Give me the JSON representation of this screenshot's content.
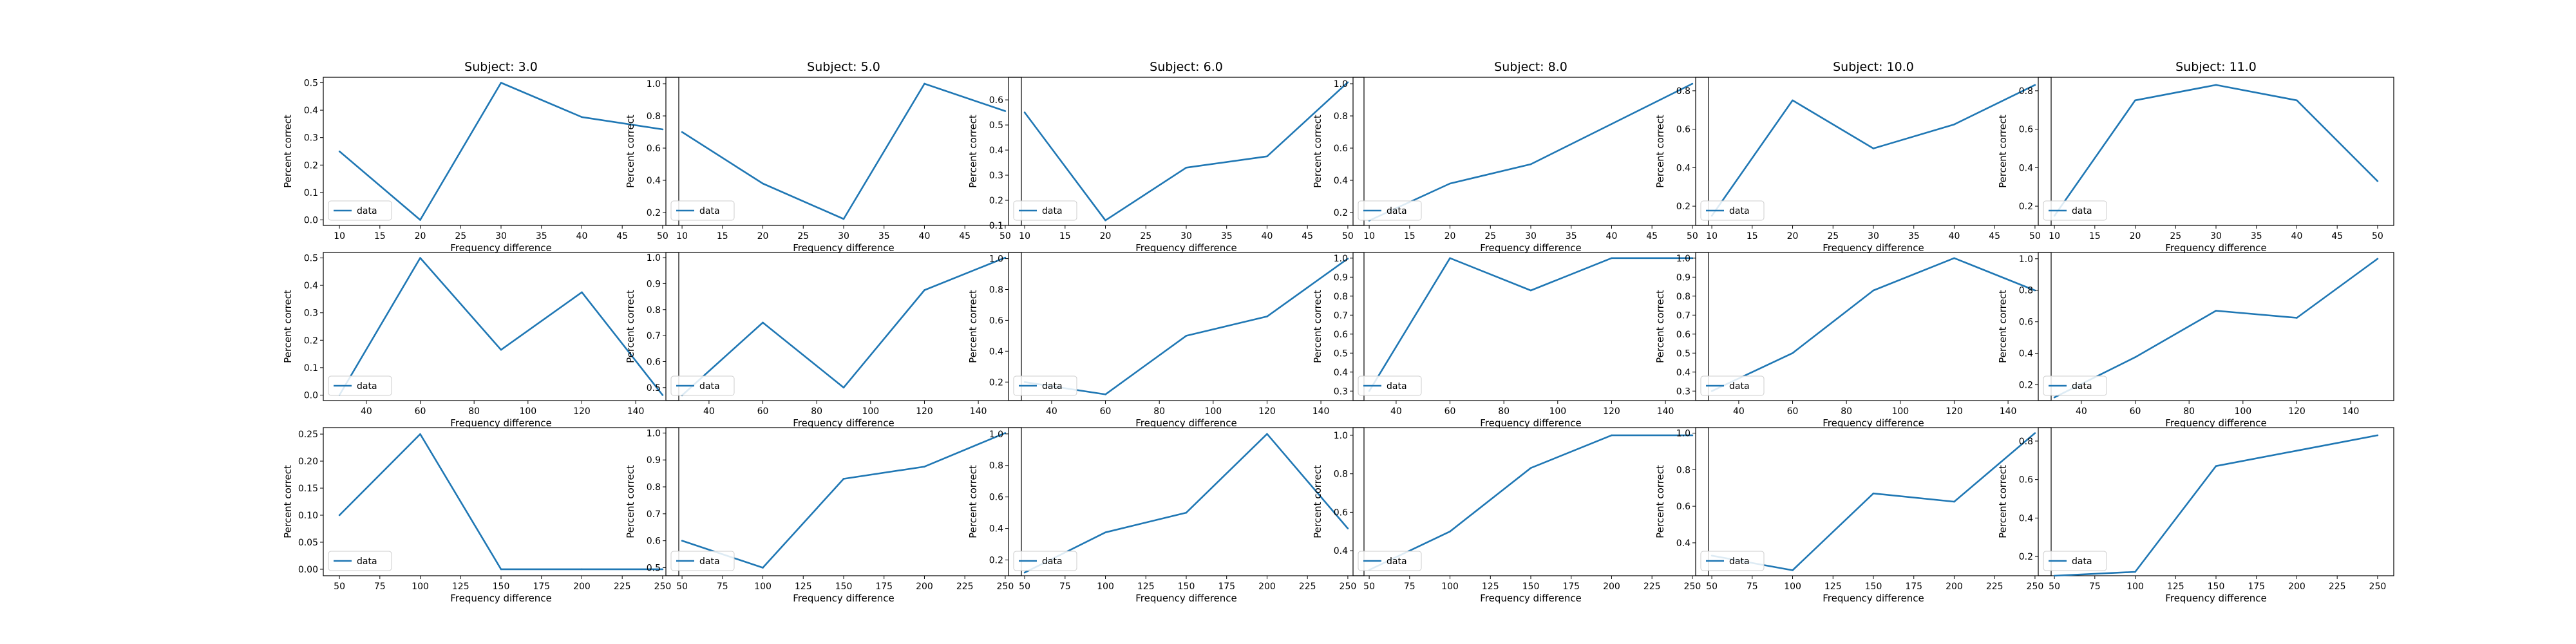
{
  "chart_data": [
    {
      "type": "line",
      "title": "Subject: 3.0",
      "xlabel": "Frequency difference",
      "ylabel": "Percent correct",
      "x": [
        10,
        20,
        30,
        40,
        50
      ],
      "xlim": [
        8,
        52
      ],
      "xticks": [
        10,
        15,
        20,
        25,
        30,
        35,
        40,
        45,
        50
      ],
      "ylim": [
        -0.02,
        0.52
      ],
      "yticks": [
        0.0,
        0.1,
        0.2,
        0.3,
        0.4,
        0.5
      ],
      "series": [
        {
          "name": "data",
          "values": [
            0.25,
            0.0,
            0.5,
            0.375,
            0.33
          ]
        }
      ],
      "legend": "lower left",
      "color": "#1f77b4"
    },
    {
      "type": "line",
      "title": "Subject: 5.0",
      "xlabel": "Frequency difference",
      "ylabel": "Percent correct",
      "x": [
        10,
        20,
        30,
        40,
        50
      ],
      "xlim": [
        8,
        52
      ],
      "xticks": [
        10,
        15,
        20,
        25,
        30,
        35,
        40,
        45,
        50
      ],
      "ylim": [
        0.12,
        1.04
      ],
      "yticks": [
        0.2,
        0.4,
        0.6,
        0.8,
        1.0
      ],
      "series": [
        {
          "name": "data",
          "values": [
            0.7,
            0.38,
            0.16,
            1.0,
            0.83
          ]
        }
      ],
      "legend": "lower left",
      "color": "#1f77b4"
    },
    {
      "type": "line",
      "title": "Subject: 6.0",
      "xlabel": "Frequency difference",
      "ylabel": "Percent correct",
      "x": [
        10,
        20,
        30,
        40,
        50
      ],
      "xlim": [
        8,
        52
      ],
      "xticks": [
        10,
        15,
        20,
        25,
        30,
        35,
        40,
        45,
        50
      ],
      "ylim": [
        0.1,
        0.69
      ],
      "yticks": [
        0.1,
        0.2,
        0.3,
        0.4,
        0.5,
        0.6
      ],
      "series": [
        {
          "name": "data",
          "values": [
            0.55,
            0.12,
            0.33,
            0.375,
            0.67
          ]
        }
      ],
      "legend": "lower left",
      "color": "#1f77b4"
    },
    {
      "type": "line",
      "title": "Subject: 8.0",
      "xlabel": "Frequency difference",
      "ylabel": "Percent correct",
      "x": [
        10,
        20,
        30,
        40,
        50
      ],
      "xlim": [
        8,
        52
      ],
      "xticks": [
        10,
        15,
        20,
        25,
        30,
        35,
        40,
        45,
        50
      ],
      "ylim": [
        0.12,
        1.04
      ],
      "yticks": [
        0.2,
        0.4,
        0.6,
        0.8,
        1.0
      ],
      "series": [
        {
          "name": "data",
          "values": [
            0.15,
            0.38,
            0.5,
            0.75,
            1.0
          ]
        }
      ],
      "legend": "lower left",
      "color": "#1f77b4"
    },
    {
      "type": "line",
      "title": "Subject: 10.0",
      "xlabel": "Frequency difference",
      "ylabel": "Percent correct",
      "x": [
        10,
        20,
        30,
        40,
        50
      ],
      "xlim": [
        8,
        52
      ],
      "xticks": [
        10,
        15,
        20,
        25,
        30,
        35,
        40,
        45,
        50
      ],
      "ylim": [
        0.1,
        0.87
      ],
      "yticks": [
        0.2,
        0.4,
        0.6,
        0.8
      ],
      "series": [
        {
          "name": "data",
          "values": [
            0.15,
            0.75,
            0.5,
            0.625,
            0.83
          ]
        }
      ],
      "legend": "lower left",
      "color": "#1f77b4"
    },
    {
      "type": "line",
      "title": "Subject: 11.0",
      "xlabel": "Frequency difference",
      "ylabel": "Percent correct",
      "x": [
        10,
        20,
        30,
        40,
        50
      ],
      "xlim": [
        8,
        52
      ],
      "xticks": [
        10,
        15,
        20,
        25,
        30,
        35,
        40,
        45,
        50
      ],
      "ylim": [
        0.1,
        0.87
      ],
      "yticks": [
        0.2,
        0.4,
        0.6,
        0.8
      ],
      "series": [
        {
          "name": "data",
          "values": [
            0.15,
            0.75,
            0.83,
            0.75,
            0.33
          ]
        }
      ],
      "legend": "lower left",
      "color": "#1f77b4"
    },
    {
      "type": "line",
      "title": "",
      "xlabel": "Frequency difference",
      "ylabel": "Percent correct",
      "x": [
        30,
        60,
        90,
        120,
        150
      ],
      "xlim": [
        24,
        156
      ],
      "xticks": [
        40,
        60,
        80,
        100,
        120,
        140
      ],
      "ylim": [
        -0.02,
        0.52
      ],
      "yticks": [
        0.0,
        0.1,
        0.2,
        0.3,
        0.4,
        0.5
      ],
      "series": [
        {
          "name": "data",
          "values": [
            0.0,
            0.5,
            0.165,
            0.375,
            0.0
          ]
        }
      ],
      "legend": "lower left",
      "color": "#1f77b4"
    },
    {
      "type": "line",
      "title": "",
      "xlabel": "Frequency difference",
      "ylabel": "Percent correct",
      "x": [
        30,
        60,
        90,
        120,
        150
      ],
      "xlim": [
        24,
        156
      ],
      "xticks": [
        40,
        60,
        80,
        100,
        120,
        140
      ],
      "ylim": [
        0.45,
        1.02
      ],
      "yticks": [
        0.5,
        0.6,
        0.7,
        0.8,
        0.9,
        1.0
      ],
      "series": [
        {
          "name": "data",
          "values": [
            0.47,
            0.75,
            0.5,
            0.875,
            1.0
          ]
        }
      ],
      "legend": "lower left",
      "color": "#1f77b4"
    },
    {
      "type": "line",
      "title": "",
      "xlabel": "Frequency difference",
      "ylabel": "Percent correct",
      "x": [
        30,
        60,
        90,
        120,
        150
      ],
      "xlim": [
        24,
        156
      ],
      "xticks": [
        40,
        60,
        80,
        100,
        120,
        140
      ],
      "ylim": [
        0.08,
        1.04
      ],
      "yticks": [
        0.2,
        0.4,
        0.6,
        0.8,
        1.0
      ],
      "series": [
        {
          "name": "data",
          "values": [
            0.2,
            0.12,
            0.5,
            0.625,
            1.0
          ]
        }
      ],
      "legend": "lower left",
      "color": "#1f77b4"
    },
    {
      "type": "line",
      "title": "",
      "xlabel": "Frequency difference",
      "ylabel": "Percent correct",
      "x": [
        30,
        60,
        90,
        120,
        150
      ],
      "xlim": [
        24,
        156
      ],
      "xticks": [
        40,
        60,
        80,
        100,
        120,
        140
      ],
      "ylim": [
        0.25,
        1.03
      ],
      "yticks": [
        0.3,
        0.4,
        0.5,
        0.6,
        0.7,
        0.8,
        0.9,
        1.0
      ],
      "series": [
        {
          "name": "data",
          "values": [
            0.3,
            1.0,
            0.83,
            1.0,
            1.0
          ]
        }
      ],
      "legend": "lower left",
      "color": "#1f77b4"
    },
    {
      "type": "line",
      "title": "",
      "xlabel": "Frequency difference",
      "ylabel": "Percent correct",
      "x": [
        30,
        60,
        90,
        120,
        150
      ],
      "xlim": [
        24,
        156
      ],
      "xticks": [
        40,
        60,
        80,
        100,
        120,
        140
      ],
      "ylim": [
        0.25,
        1.03
      ],
      "yticks": [
        0.3,
        0.4,
        0.5,
        0.6,
        0.7,
        0.8,
        0.9,
        1.0
      ],
      "series": [
        {
          "name": "data",
          "values": [
            0.3,
            0.5,
            0.83,
            1.0,
            0.83
          ]
        }
      ],
      "legend": "lower left",
      "color": "#1f77b4"
    },
    {
      "type": "line",
      "title": "",
      "xlabel": "Frequency difference",
      "ylabel": "Percent correct",
      "x": [
        30,
        60,
        90,
        120,
        150
      ],
      "xlim": [
        24,
        156
      ],
      "xticks": [
        40,
        60,
        80,
        100,
        120,
        140
      ],
      "ylim": [
        0.1,
        1.04
      ],
      "yticks": [
        0.2,
        0.4,
        0.6,
        0.8,
        1.0
      ],
      "series": [
        {
          "name": "data",
          "values": [
            0.12,
            0.375,
            0.67,
            0.625,
            1.0
          ]
        }
      ],
      "legend": "lower left",
      "color": "#1f77b4"
    },
    {
      "type": "line",
      "title": "",
      "xlabel": "Frequency difference",
      "ylabel": "Percent correct",
      "x": [
        50,
        100,
        150,
        200,
        250
      ],
      "xlim": [
        40,
        260
      ],
      "xticks": [
        50,
        75,
        100,
        125,
        150,
        175,
        200,
        225,
        250
      ],
      "ylim": [
        -0.012,
        0.262
      ],
      "yticks": [
        0.0,
        0.05,
        0.1,
        0.15,
        0.2,
        0.25
      ],
      "series": [
        {
          "name": "data",
          "values": [
            0.1,
            0.25,
            0.0,
            0.0,
            0.0
          ]
        }
      ],
      "legend": "lower left",
      "color": "#1f77b4"
    },
    {
      "type": "line",
      "title": "",
      "xlabel": "Frequency difference",
      "ylabel": "Percent correct",
      "x": [
        50,
        100,
        150,
        200,
        250
      ],
      "xlim": [
        40,
        260
      ],
      "xticks": [
        50,
        75,
        100,
        125,
        150,
        175,
        200,
        225,
        250
      ],
      "ylim": [
        0.47,
        1.02
      ],
      "yticks": [
        0.5,
        0.6,
        0.7,
        0.8,
        0.9,
        1.0
      ],
      "series": [
        {
          "name": "data",
          "values": [
            0.6,
            0.5,
            0.83,
            0.875,
            1.0
          ]
        }
      ],
      "legend": "lower left",
      "color": "#1f77b4"
    },
    {
      "type": "line",
      "title": "",
      "xlabel": "Frequency difference",
      "ylabel": "Percent correct",
      "x": [
        50,
        100,
        150,
        200,
        250
      ],
      "xlim": [
        40,
        260
      ],
      "xticks": [
        50,
        75,
        100,
        125,
        150,
        175,
        200,
        225,
        250
      ],
      "ylim": [
        0.1,
        1.04
      ],
      "yticks": [
        0.2,
        0.4,
        0.6,
        0.8,
        1.0
      ],
      "series": [
        {
          "name": "data",
          "values": [
            0.12,
            0.375,
            0.5,
            1.0,
            0.4
          ]
        }
      ],
      "legend": "lower left",
      "color": "#1f77b4"
    },
    {
      "type": "line",
      "title": "",
      "xlabel": "Frequency difference",
      "ylabel": "Percent correct",
      "x": [
        50,
        100,
        150,
        200,
        250
      ],
      "xlim": [
        40,
        260
      ],
      "xticks": [
        50,
        75,
        100,
        125,
        150,
        175,
        200,
        225,
        250
      ],
      "ylim": [
        0.27,
        1.04
      ],
      "yticks": [
        0.4,
        0.6,
        0.8,
        1.0
      ],
      "series": [
        {
          "name": "data",
          "values": [
            0.3,
            0.5,
            0.83,
            1.0,
            1.0
          ]
        }
      ],
      "legend": "lower left",
      "color": "#1f77b4"
    },
    {
      "type": "line",
      "title": "",
      "xlabel": "Frequency difference",
      "ylabel": "Percent correct",
      "x": [
        50,
        100,
        150,
        200,
        250
      ],
      "xlim": [
        40,
        260
      ],
      "xticks": [
        50,
        75,
        100,
        125,
        150,
        175,
        200,
        225,
        250
      ],
      "ylim": [
        0.22,
        1.03
      ],
      "yticks": [
        0.4,
        0.6,
        0.8,
        1.0
      ],
      "series": [
        {
          "name": "data",
          "values": [
            0.33,
            0.25,
            0.67,
            0.625,
            1.0
          ]
        }
      ],
      "legend": "lower left",
      "color": "#1f77b4"
    },
    {
      "type": "line",
      "title": "",
      "xlabel": "Frequency difference",
      "ylabel": "Percent correct",
      "x": [
        50,
        100,
        150,
        200,
        250
      ],
      "xlim": [
        40,
        260
      ],
      "xticks": [
        50,
        75,
        100,
        125,
        150,
        175,
        200,
        225,
        250
      ],
      "ylim": [
        0.1,
        0.87
      ],
      "yticks": [
        0.2,
        0.4,
        0.6,
        0.8
      ],
      "series": [
        {
          "name": "data",
          "values": [
            0.1,
            0.12,
            0.67,
            0.75,
            0.83
          ]
        }
      ],
      "legend": "lower left",
      "color": "#1f77b4"
    }
  ]
}
